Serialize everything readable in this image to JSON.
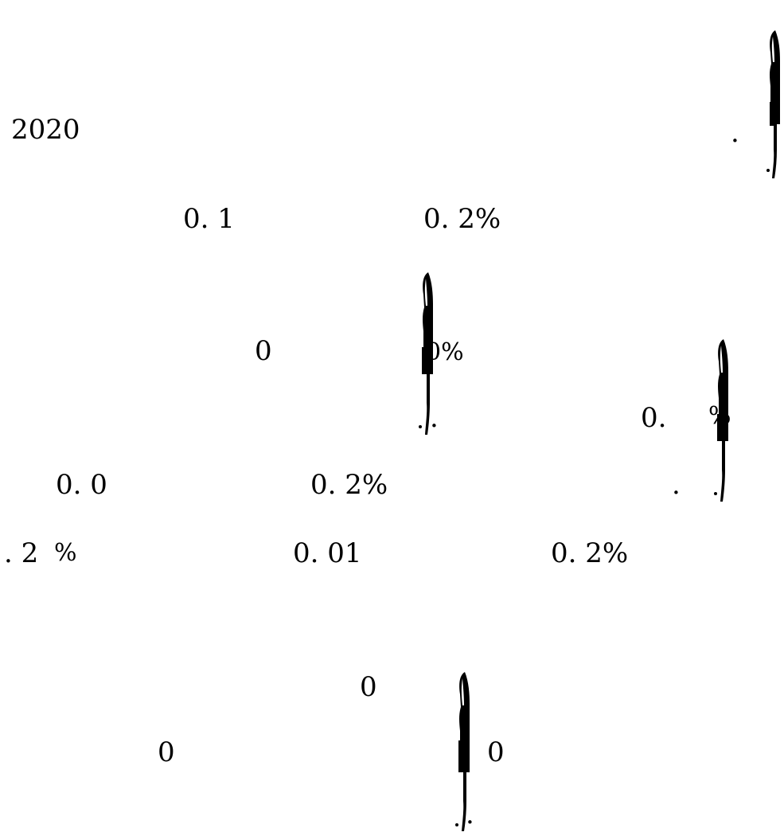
{
  "document": {
    "year": "2020",
    "period_1": ".",
    "value_1": "0. 1",
    "pct_1": "0. 2%",
    "zero_1": "0",
    "pct_2": "0%",
    "period_2": ".",
    "value_2": "0.",
    "pct_3": "%",
    "value_3": "0. 0",
    "pct_4": "0. 2%",
    "period_3": ".",
    "value_4": ". 2",
    "pct_5": "%",
    "value_5": "0. 01",
    "pct_6": "0. 2%",
    "zero_2": "0",
    "zero_3": "0",
    "zero_4": "0",
    "period_4": "."
  },
  "figures": {
    "color": "#000000",
    "icon": "standing-figure-glyph"
  }
}
